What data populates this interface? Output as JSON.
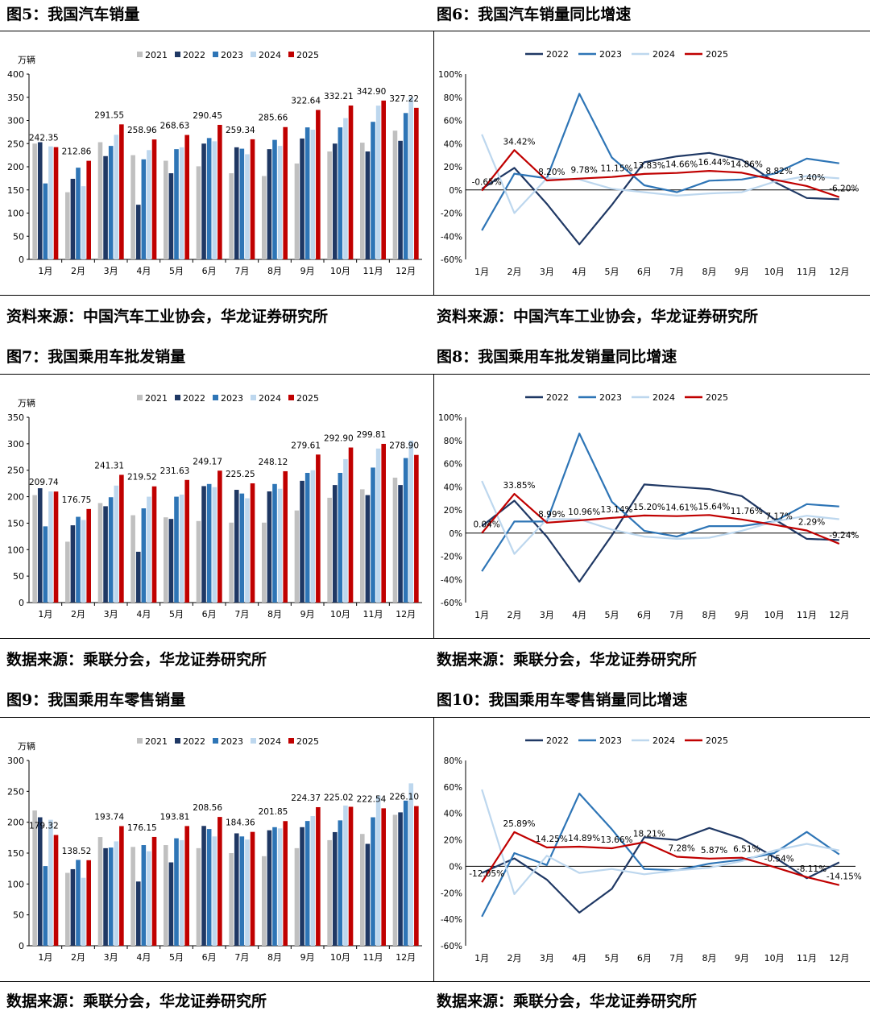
{
  "colors": {
    "c2021": "#c0c0c0",
    "c2022": "#1f3864",
    "c2023": "#2e75b6",
    "c2024": "#bdd7ee",
    "c2025": "#c00000"
  },
  "figures": {
    "fig5": {
      "title": "图5：我国汽车销量",
      "source": "资料来源：中国汽车工业协会，华龙证券研究所"
    },
    "fig6": {
      "title": "图6：我国汽车销量同比增速",
      "source": "资料来源：中国汽车工业协会，华龙证券研究所"
    },
    "fig7": {
      "title": "图7：我国乘用车批发销量",
      "source": "数据来源：乘联分会，华龙证券研究所"
    },
    "fig8": {
      "title": "图8：我国乘用车批发销量同比增速",
      "source": "数据来源：乘联分会，华龙证券研究所"
    },
    "fig9": {
      "title": "图9：我国乘用车零售销量",
      "source": "数据来源：乘联分会，华龙证券研究所"
    },
    "fig10": {
      "title": "图10：我国乘用车零售销量同比增速",
      "source": "数据来源：乘联分会，华龙证券研究所"
    }
  },
  "chart_data": [
    {
      "id": "fig5",
      "type": "bar",
      "title": "图5：我国汽车销量",
      "unit_label": "万辆",
      "ylim": [
        0,
        400
      ],
      "yticks": [
        0,
        50,
        100,
        150,
        200,
        250,
        300,
        350,
        400
      ],
      "categories": [
        "1月",
        "2月",
        "3月",
        "4月",
        "5月",
        "6月",
        "7月",
        "8月",
        "9月",
        "10月",
        "11月",
        "12月"
      ],
      "series": [
        {
          "name": "2021",
          "color": "#c0c0c0",
          "values": [
            250,
            145,
            253,
            225,
            213,
            201,
            186,
            180,
            207,
            233,
            252,
            278
          ]
        },
        {
          "name": "2022",
          "color": "#1f3864",
          "values": [
            253,
            174,
            223,
            118,
            186,
            250,
            242,
            238,
            261,
            250,
            233,
            256
          ]
        },
        {
          "name": "2023",
          "color": "#2e75b6",
          "values": [
            164,
            198,
            245,
            216,
            238,
            262,
            239,
            258,
            285,
            285,
            297,
            316
          ]
        },
        {
          "name": "2024",
          "color": "#bdd7ee",
          "values": [
            244,
            158,
            269,
            236,
            242,
            255,
            227,
            245,
            280,
            305,
            332,
            350
          ]
        },
        {
          "name": "2025",
          "color": "#c00000",
          "values": [
            242.35,
            212.86,
            291.55,
            258.96,
            268.63,
            290.45,
            259.34,
            285.66,
            322.64,
            332.21,
            342.9,
            327.22
          ]
        }
      ],
      "data_labels": [
        "242.35",
        "212.86",
        "291.55",
        "258.96",
        "268.63",
        "290.45",
        "259.34",
        "285.66",
        "322.64",
        "332.21",
        "342.90",
        "327.22"
      ]
    },
    {
      "id": "fig6",
      "type": "line",
      "title": "图6：我国汽车销量同比增速",
      "ylim": [
        -60,
        100
      ],
      "yticks": [
        -60,
        -40,
        -20,
        0,
        20,
        40,
        60,
        80,
        100
      ],
      "ytick_labels": [
        "-60%",
        "-40%",
        "-20%",
        "0%",
        "20%",
        "40%",
        "60%",
        "80%",
        "100%"
      ],
      "categories": [
        "1月",
        "2月",
        "3月",
        "4月",
        "5月",
        "6月",
        "7月",
        "8月",
        "9月",
        "10月",
        "11月",
        "12月"
      ],
      "series": [
        {
          "name": "2022",
          "color": "#1f3864",
          "values": [
            1,
            19,
            -12,
            -47,
            -13,
            24,
            29,
            32,
            26,
            7,
            -7,
            -8
          ]
        },
        {
          "name": "2023",
          "color": "#2e75b6",
          "values": [
            -35,
            14,
            10,
            83,
            28,
            4,
            -2,
            8,
            9,
            14,
            27,
            23
          ]
        },
        {
          "name": "2024",
          "color": "#bdd7ee",
          "values": [
            48,
            -20,
            10,
            9,
            1,
            -2,
            -5,
            -3,
            -2,
            7,
            12,
            10
          ]
        },
        {
          "name": "2025",
          "color": "#c00000",
          "values": [
            -0.65,
            34.42,
            8.2,
            9.78,
            11.15,
            13.83,
            14.66,
            16.44,
            14.86,
            8.82,
            3.4,
            -6.2
          ]
        }
      ],
      "data_labels": [
        "-0.65%",
        "34.42%",
        "8.20%",
        "9.78%",
        "11.15%",
        "13.83%",
        "14.66%",
        "16.44%",
        "14.86%",
        "8.82%",
        "3.40%",
        "-6.20%"
      ]
    },
    {
      "id": "fig7",
      "type": "bar",
      "title": "图7：我国乘用车批发销量",
      "unit_label": "万辆",
      "ylim": [
        0,
        350
      ],
      "yticks": [
        0,
        50,
        100,
        150,
        200,
        250,
        300,
        350
      ],
      "categories": [
        "1月",
        "2月",
        "3月",
        "4月",
        "5月",
        "6月",
        "7月",
        "8月",
        "9月",
        "10月",
        "11月",
        "12月"
      ],
      "series": [
        {
          "name": "2021",
          "color": "#c0c0c0",
          "values": [
            203,
            115,
            188,
            165,
            161,
            154,
            151,
            151,
            174,
            198,
            214,
            236
          ]
        },
        {
          "name": "2022",
          "color": "#1f3864",
          "values": [
            216,
            146,
            182,
            96,
            158,
            220,
            213,
            210,
            230,
            222,
            203,
            222
          ]
        },
        {
          "name": "2023",
          "color": "#2e75b6",
          "values": [
            144,
            162,
            199,
            178,
            200,
            224,
            206,
            224,
            245,
            245,
            255,
            273
          ]
        },
        {
          "name": "2024",
          "color": "#bdd7ee",
          "values": [
            210,
            156,
            221,
            200,
            204,
            218,
            197,
            215,
            250,
            271,
            291,
            306
          ]
        },
        {
          "name": "2025",
          "color": "#c00000",
          "values": [
            209.74,
            176.75,
            241.31,
            219.52,
            231.63,
            249.17,
            225.25,
            248.12,
            279.61,
            292.9,
            299.81,
            278.9
          ]
        }
      ],
      "data_labels": [
        "209.74",
        "176.75",
        "241.31",
        "219.52",
        "231.63",
        "249.17",
        "225.25",
        "248.12",
        "279.61",
        "292.90",
        "299.81",
        "278.90"
      ]
    },
    {
      "id": "fig8",
      "type": "line",
      "title": "图8：我国乘用车批发销量同比增速",
      "ylim": [
        -60,
        100
      ],
      "yticks": [
        -60,
        -40,
        -20,
        0,
        20,
        40,
        60,
        80,
        100
      ],
      "ytick_labels": [
        "-60%",
        "-40%",
        "-20%",
        "0%",
        "20%",
        "40%",
        "60%",
        "80%",
        "100%"
      ],
      "categories": [
        "1月",
        "2月",
        "3月",
        "4月",
        "5月",
        "6月",
        "7月",
        "8月",
        "9月",
        "10月",
        "11月",
        "12月"
      ],
      "series": [
        {
          "name": "2022",
          "color": "#1f3864",
          "values": [
            6,
            28,
            -3,
            -42,
            -2,
            42,
            40,
            38,
            32,
            12,
            -5,
            -6
          ]
        },
        {
          "name": "2023",
          "color": "#2e75b6",
          "values": [
            -33,
            10,
            10,
            86,
            27,
            2,
            -3,
            6,
            6,
            10,
            25,
            23
          ]
        },
        {
          "name": "2024",
          "color": "#bdd7ee",
          "values": [
            45,
            -18,
            12,
            12,
            3,
            -3,
            -5,
            -4,
            2,
            10,
            15,
            12
          ]
        },
        {
          "name": "2025",
          "color": "#c00000",
          "values": [
            0.04,
            33.85,
            8.99,
            10.96,
            13.14,
            15.2,
            14.61,
            15.64,
            11.76,
            7.17,
            2.29,
            -9.24
          ]
        }
      ],
      "data_labels": [
        "0.04%",
        "33.85%",
        "8.99%",
        "10.96%",
        "13.14%",
        "15.20%",
        "14.61%",
        "15.64%",
        "11.76%",
        "7.17%",
        "2.29%",
        "-9.24%"
      ]
    },
    {
      "id": "fig9",
      "type": "bar",
      "title": "图9：我国乘用车零售销量",
      "unit_label": "万辆",
      "ylim": [
        0,
        300
      ],
      "yticks": [
        0,
        50,
        100,
        150,
        200,
        250,
        300
      ],
      "categories": [
        "1月",
        "2月",
        "3月",
        "4月",
        "5月",
        "6月",
        "7月",
        "8月",
        "9月",
        "10月",
        "11月",
        "12月"
      ],
      "series": [
        {
          "name": "2021",
          "color": "#c0c0c0",
          "values": [
            219,
            118,
            176,
            160,
            163,
            158,
            150,
            145,
            158,
            171,
            181,
            212
          ]
        },
        {
          "name": "2022",
          "color": "#1f3864",
          "values": [
            208,
            124,
            158,
            104,
            135,
            194,
            182,
            187,
            192,
            184,
            165,
            216
          ]
        },
        {
          "name": "2023",
          "color": "#2e75b6",
          "values": [
            129,
            139,
            159,
            163,
            174,
            189,
            177,
            192,
            202,
            203,
            208,
            235
          ]
        },
        {
          "name": "2024",
          "color": "#bdd7ee",
          "values": [
            204,
            110,
            169,
            153,
            171,
            177,
            172,
            190,
            210,
            227,
            243,
            263
          ]
        },
        {
          "name": "2025",
          "color": "#c00000",
          "values": [
            179.32,
            138.52,
            193.74,
            176.15,
            193.81,
            208.56,
            184.36,
            201.85,
            224.37,
            225.02,
            222.54,
            226.1
          ]
        }
      ],
      "data_labels": [
        "179.32",
        "138.52",
        "193.74",
        "176.15",
        "193.81",
        "208.56",
        "184.36",
        "201.85",
        "224.37",
        "225.02",
        "222.54",
        "226.10"
      ]
    },
    {
      "id": "fig10",
      "type": "line",
      "title": "图10：我国乘用车零售销量同比增速",
      "ylim": [
        -60,
        80
      ],
      "yticks": [
        -60,
        -40,
        -20,
        0,
        20,
        40,
        60,
        80
      ],
      "ytick_labels": [
        "-60%",
        "-40%",
        "-20%",
        "0%",
        "20%",
        "40%",
        "60%",
        "80%"
      ],
      "categories": [
        "1月",
        "2月",
        "3月",
        "4月",
        "5月",
        "6月",
        "7月",
        "8月",
        "9月",
        "10月",
        "11月",
        "12月"
      ],
      "series": [
        {
          "name": "2022",
          "color": "#1f3864",
          "values": [
            -5,
            6,
            -10,
            -35,
            -17,
            22,
            20,
            29,
            21,
            7,
            -9,
            3
          ]
        },
        {
          "name": "2023",
          "color": "#2e75b6",
          "values": [
            -38,
            10,
            1,
            55,
            28,
            -2,
            -3,
            2,
            5,
            10,
            26,
            9
          ]
        },
        {
          "name": "2024",
          "color": "#bdd7ee",
          "values": [
            58,
            -21,
            8,
            -5,
            -2,
            -6,
            -3,
            -1,
            4,
            12,
            17,
            12
          ]
        },
        {
          "name": "2025",
          "color": "#c00000",
          "values": [
            -12.05,
            25.89,
            14.25,
            14.89,
            13.66,
            18.21,
            7.28,
            5.87,
            6.51,
            -0.54,
            -8.11,
            -14.15
          ]
        }
      ],
      "data_labels": [
        "-12.05%",
        "25.89%",
        "14.25%",
        "14.89%",
        "13.66%",
        "18.21%",
        "7.28%",
        "5.87%",
        "6.51%",
        "-0.54%",
        "-8.11%",
        "-14.15%"
      ]
    }
  ]
}
